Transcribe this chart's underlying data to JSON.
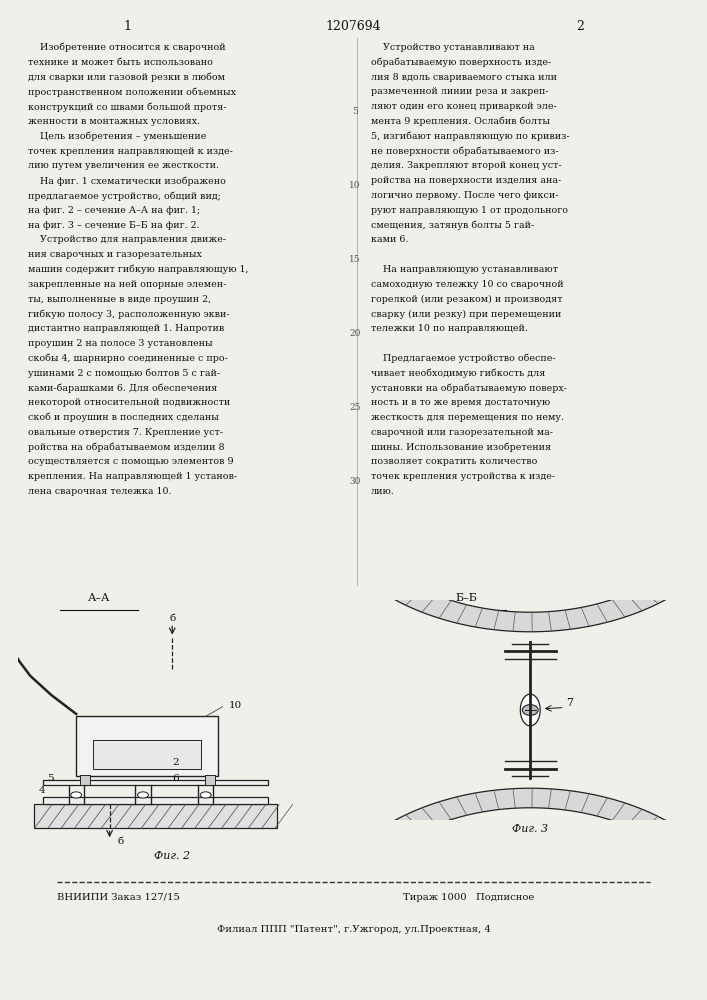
{
  "page_width": 7.07,
  "page_height": 10.0,
  "bg_color": "#f0f0eb",
  "header_num_left": "1",
  "header_patent": "1207694",
  "header_num_right": "2",
  "col1_text": [
    "    Изобретение относится к сварочной",
    "технике и может быть использовано",
    "для сварки или газовой резки в любом",
    "пространственном положении объемных",
    "конструкций со швами большой протя-",
    "женности в монтажных условиях.",
    "    Цель изобретения – уменьшение",
    "точек крепления направляющей к изде-",
    "лию путем увеличения ее жесткости.",
    "    На фиг. 1 схематически изображено",
    "предлагаемое устройство, общий вид;",
    "на фиг. 2 – сечение А–А на фиг. 1;",
    "на фиг. 3 – сечение Б–Б на фиг. 2.",
    "    Устройство для направления движе-",
    "ния сварочных и газорезательных",
    "машин содержит гибкую направляющую 1,",
    "закрепленные на ней опорные элемен-",
    "ты, выполненные в виде проушин 2,",
    "гибкую полосу 3, расположенную экви-",
    "дистантно направляющей 1. Напротив",
    "проушин 2 на полосе 3 установлены",
    "скобы 4, шарнирно соединенные с про-",
    "ушинами 2 с помощью болтов 5 с гай-",
    "ками-барашками 6. Для обеспечения",
    "некоторой относительной подвижности",
    "скоб и проушин в последних сделаны",
    "овальные отверстия 7. Крепление уст-",
    "ройства на обрабатываемом изделии 8",
    "осуществляется с помощью элементов 9",
    "крепления. На направляющей 1 установ-",
    "лена сварочная тележка 10."
  ],
  "col2_text": [
    "    Устройство устанавливают на",
    "обрабатываемую поверхность изде-",
    "лия 8 вдоль свариваемого стыка или",
    "размеченной линии реза и закреп-",
    "ляют один его конец приваркой эле-",
    "мента 9 крепления. Ослабив болты",
    "5, изгибают направляющую по кривиз-",
    "не поверхности обрабатываемого из-",
    "делия. Закрепляют второй конец уст-",
    "ройства на поверхности изделия ана-",
    "логично первому. После чего фикси-",
    "руют направляющую 1 от продольного",
    "смещения, затянув болты 5 гай-",
    "ками 6.",
    "",
    "    На направляющую устанавливают",
    "самоходную тележку 10 со сварочной",
    "горелкой (или резаком) и производят",
    "сварку (или резку) при перемещении",
    "тележки 10 по направляющей.",
    "",
    "    Предлагаемое устройство обеспе-",
    "чивает необходимую гибкость для",
    "установки на обрабатываемую поверх-",
    "ность и в то же время достаточную",
    "жесткость для перемещения по нему.",
    "сварочной или газорезательной ма-",
    "шины. Использование изобретения",
    "позволяет сократить количество",
    "точек крепления устройства к изде-",
    "лию."
  ],
  "fig2_caption": "Фиг. 2",
  "fig3_caption": "Фиг. 3",
  "footer_order": "ВНИИПИ Заказ 127/15",
  "footer_tirazh": "Тираж 1000   Подписное",
  "footer_branch": "Филиал ППП \"Патент\", г.Ужгород, ул.Проектная, 4"
}
